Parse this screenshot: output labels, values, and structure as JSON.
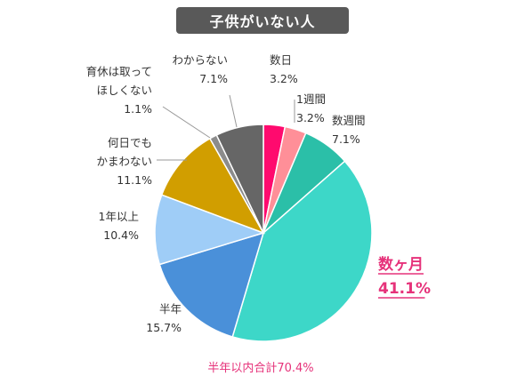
{
  "chart_data": {
    "type": "pie",
    "title": "子供がいない人",
    "start": "12 o'clock",
    "direction": "clockwise",
    "slices": [
      {
        "label_lines": [
          "数日"
        ],
        "value_text": "3.2%",
        "value": 3.2,
        "color": "#ff0a6e"
      },
      {
        "label_lines": [
          "1週間"
        ],
        "value_text": "3.2%",
        "value": 3.2,
        "color": "#ff8f98"
      },
      {
        "label_lines": [
          "数週間"
        ],
        "value_text": "7.1%",
        "value": 7.1,
        "color": "#2bbfa8"
      },
      {
        "label_lines": [
          "数ヶ月"
        ],
        "value_text": "41.1%",
        "value": 41.1,
        "color": "#3dd7c8",
        "highlight": true
      },
      {
        "label_lines": [
          "半年"
        ],
        "value_text": "15.7%",
        "value": 15.7,
        "color": "#4a90d9"
      },
      {
        "label_lines": [
          "1年以上"
        ],
        "value_text": "10.4%",
        "value": 10.4,
        "color": "#9fcdf7"
      },
      {
        "label_lines": [
          "何日でも",
          "かまわない"
        ],
        "value_text": "11.1%",
        "value": 11.1,
        "color": "#d19e00"
      },
      {
        "label_lines": [
          "育休は取って",
          "ほしくない"
        ],
        "value_text": "1.1%",
        "value": 1.1,
        "color": "#8c8c8c"
      },
      {
        "label_lines": [
          "わからない"
        ],
        "value_text": "7.1%",
        "value": 7.1,
        "color": "#666666"
      }
    ],
    "annotation": "半年以内合計70.4%",
    "highlight_color": "#e6327a"
  }
}
